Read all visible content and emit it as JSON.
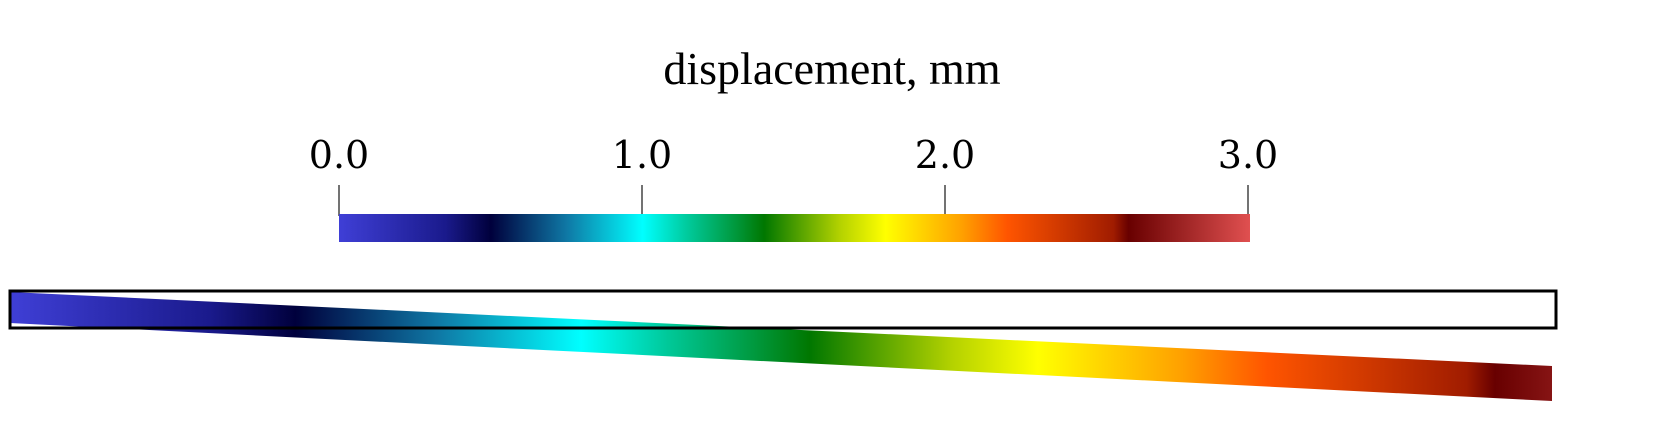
{
  "legend": {
    "title": "displacement, mm",
    "range": [
      0.0,
      3.0
    ],
    "ticks": [
      "0.0",
      "1.0",
      "2.0",
      "3.0"
    ],
    "tick_values": [
      0.0,
      1.0,
      2.0,
      3.0
    ],
    "colormap": [
      {
        "value": 0.0,
        "color": "#3f3fd6"
      },
      {
        "value": 0.35,
        "color": "#1a1a8c"
      },
      {
        "value": 0.5,
        "color": "#00003c"
      },
      {
        "value": 0.75,
        "color": "#0f78a5"
      },
      {
        "value": 1.0,
        "color": "#00ffff"
      },
      {
        "value": 1.15,
        "color": "#00c99a"
      },
      {
        "value": 1.3,
        "color": "#009a40"
      },
      {
        "value": 1.4,
        "color": "#007700"
      },
      {
        "value": 1.65,
        "color": "#b4d200"
      },
      {
        "value": 1.8,
        "color": "#ffff00"
      },
      {
        "value": 2.05,
        "color": "#ffa100"
      },
      {
        "value": 2.2,
        "color": "#ff5500"
      },
      {
        "value": 2.55,
        "color": "#a01c00"
      },
      {
        "value": 2.6,
        "color": "#680000"
      },
      {
        "value": 3.0,
        "color": "#e05050"
      }
    ]
  },
  "beam": {
    "displacement_fixed_end": 0.0,
    "displacement_free_end": 2.7,
    "outline_color": "#000000"
  }
}
